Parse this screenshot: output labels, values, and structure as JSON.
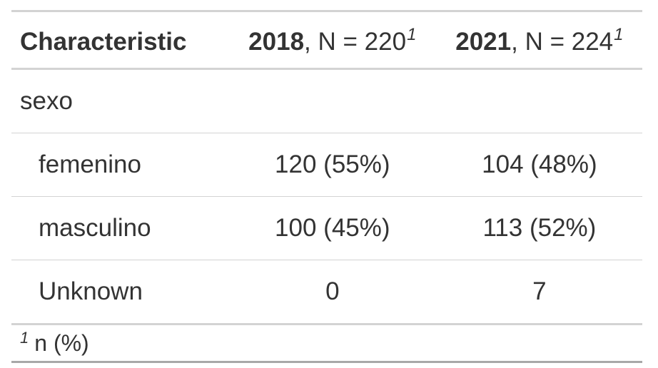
{
  "table": {
    "header": {
      "characteristic": "Characteristic",
      "col_2018_bold": "2018",
      "col_2018_rest": ", N = 220",
      "col_2021_bold": "2021",
      "col_2021_rest": ", N = 224",
      "footnote_marker": "1"
    },
    "group_label": "sexo",
    "rows": [
      {
        "label": "femenino",
        "v2018": "120 (55%)",
        "v2021": "104 (48%)"
      },
      {
        "label": "masculino",
        "v2018": "100 (45%)",
        "v2021": "113 (52%)"
      },
      {
        "label": "Unknown",
        "v2018": "0",
        "v2021": "7"
      }
    ],
    "footnote": {
      "marker": "1",
      "text": "n (%)"
    }
  }
}
